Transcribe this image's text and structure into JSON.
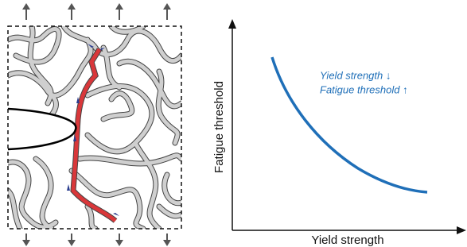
{
  "panel_b": {
    "x_axis_label": "Yield strength",
    "y_axis_label": "Fatigue threshold",
    "annotation": [
      "Yield strength ↓",
      "Fatigue threshold ↑"
    ]
  }
}
